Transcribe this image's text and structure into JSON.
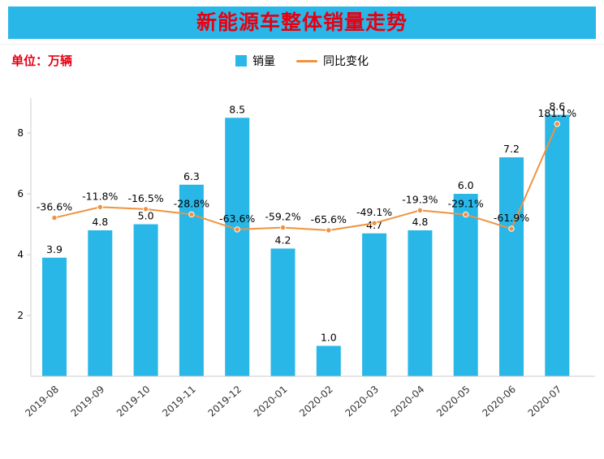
{
  "header": {
    "title": "新能源车整体销量走势"
  },
  "info": {
    "unit_label": "单位：万辆"
  },
  "legend": {
    "bar_label": "销量",
    "line_label": "同比变化"
  },
  "colors": {
    "bar": "#29B7E8",
    "line": "#F0923F",
    "banner": "#29B7E8",
    "title_text": "#E60012",
    "unit_text": "#E60012",
    "axis": "#CCCCCC",
    "label_text": "#000000",
    "xtick_text": "#333333"
  },
  "chart_data": {
    "type": "bar",
    "title": "新能源车整体销量走势",
    "unit_note": "单位：万辆",
    "categories": [
      "2019-08",
      "2019-09",
      "2019-10",
      "2019-11",
      "2019-12",
      "2020-01",
      "2020-02",
      "2020-03",
      "2020-04",
      "2020-05",
      "2020-06",
      "2020-07"
    ],
    "series": [
      {
        "name": "销量",
        "type": "bar",
        "values": [
          3.9,
          4.8,
          5.0,
          6.3,
          8.5,
          4.2,
          1.0,
          4.7,
          4.8,
          6.0,
          7.2,
          8.6
        ],
        "labels": [
          "3.9",
          "4.8",
          "5.0",
          "6.3",
          "8.5",
          "4.2",
          "1.0",
          "4.7",
          "4.8",
          "6.0",
          "7.2",
          "8.6"
        ]
      },
      {
        "name": "同比变化",
        "type": "line",
        "values_percent": [
          -36.6,
          -11.8,
          -16.5,
          -28.8,
          -63.6,
          -59.2,
          -65.6,
          -49.1,
          -19.3,
          -29.1,
          -61.9,
          181.1
        ],
        "labels": [
          "-36.6%",
          "-11.8%",
          "-16.5%",
          "-28.8%",
          "-63.6%",
          "-59.2%",
          "-65.6%",
          "-49.1%",
          "-19.3%",
          "-29.1%",
          "-61.9%",
          "181.1%"
        ]
      }
    ],
    "ylim": [
      0,
      8.8
    ],
    "yticks": [
      2,
      4,
      6,
      8
    ],
    "grid": false,
    "legend_position": "top-center",
    "line_overlay_fit": {
      "pct_min": -65.6,
      "unit_min": 4.8,
      "pct_max": 181.1,
      "unit_max": 8.3
    }
  }
}
